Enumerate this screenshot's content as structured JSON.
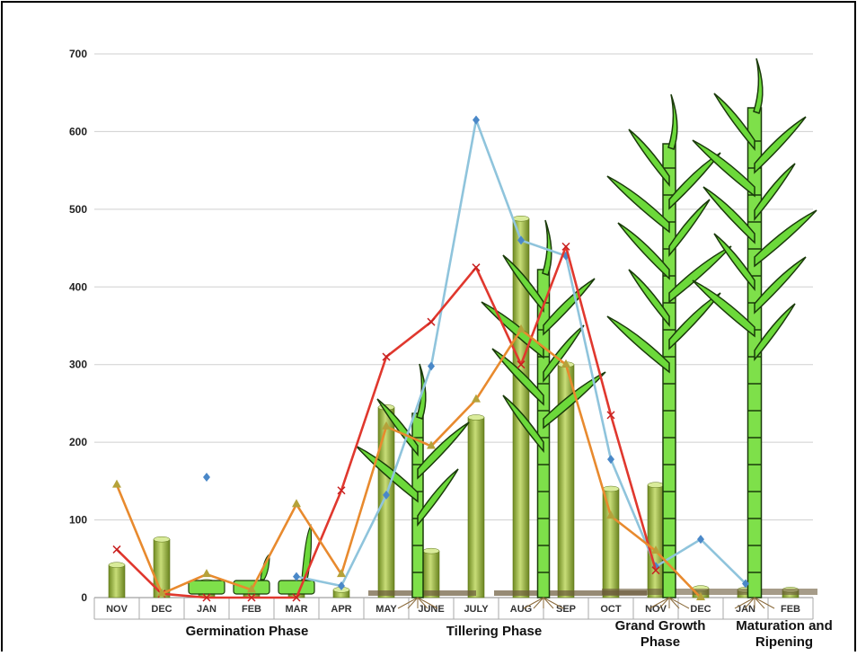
{
  "chart_data": {
    "type": "bar",
    "categories": [
      "NOV",
      "DEC",
      "JAN",
      "FEB",
      "MAR",
      "APR",
      "MAY",
      "JUNE",
      "JULY",
      "AUG",
      "SEP",
      "OCT",
      "NOV",
      "DEC",
      "JAN",
      "FEB"
    ],
    "ylim": [
      0,
      700
    ],
    "yticks": [
      0,
      100,
      200,
      300,
      400,
      500,
      600,
      700
    ],
    "grid": true,
    "bars": {
      "color": "#9cb84a",
      "values": [
        42,
        75,
        20,
        18,
        18,
        10,
        245,
        60,
        232,
        488,
        300,
        140,
        145,
        12,
        10,
        10
      ]
    },
    "lines": [
      {
        "color": "#8fc4dc",
        "marker": "diamond",
        "values": [
          null,
          null,
          155,
          null,
          27,
          15,
          132,
          298,
          615,
          460,
          440,
          178,
          40,
          75,
          18,
          null
        ]
      },
      {
        "color": "#e0382e",
        "marker": "x",
        "values": [
          62,
          5,
          0,
          0,
          0,
          138,
          310,
          355,
          425,
          300,
          452,
          235,
          35,
          null,
          null,
          null
        ]
      },
      {
        "color": "#e88a2e",
        "marker": "triangle",
        "values": [
          145,
          5,
          30,
          10,
          120,
          30,
          220,
          195,
          255,
          345,
          300,
          105,
          60,
          0,
          null,
          null
        ]
      }
    ],
    "phases": [
      {
        "label": "Germination Phase"
      },
      {
        "label": "Tillering Phase"
      },
      {
        "label": "Grand Growth Phase"
      },
      {
        "label": "Maturation and Ripening"
      }
    ]
  }
}
